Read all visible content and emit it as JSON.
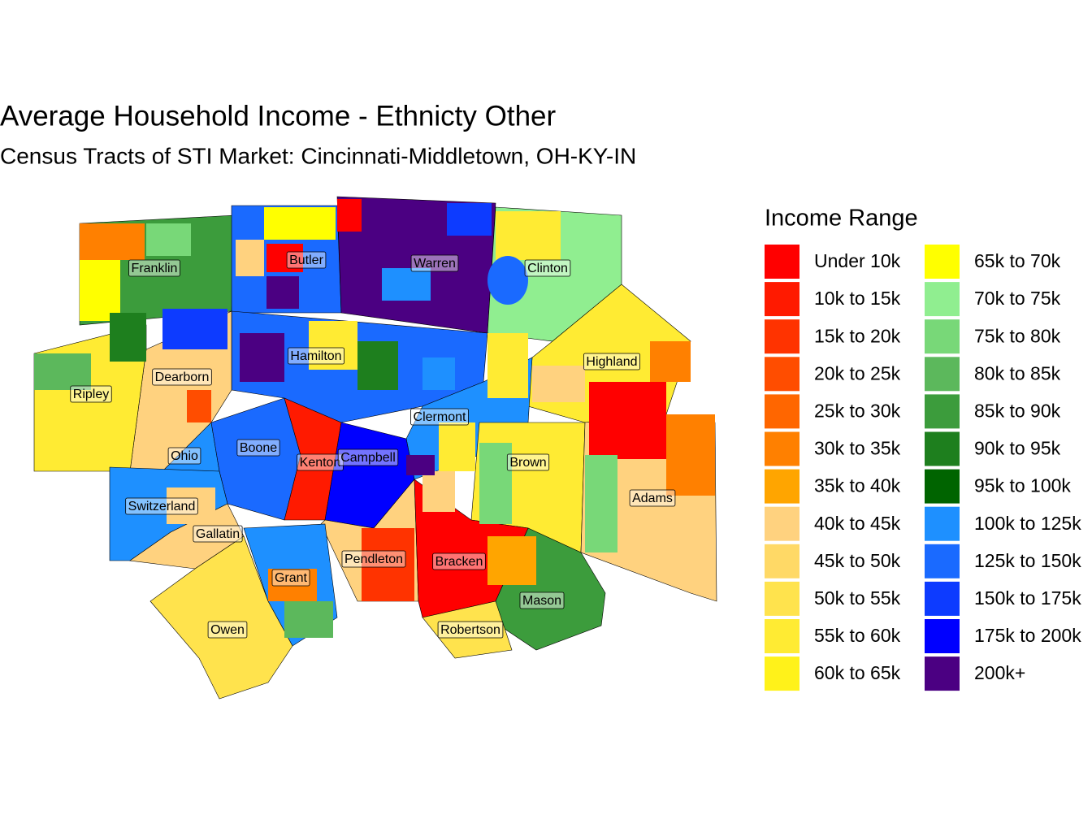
{
  "title": "Average Household Income - Ethnicty Other",
  "subtitle": "Census Tracts of STI Market: Cincinnati-Middletown, OH-KY-IN",
  "legend": {
    "title": "Income Range",
    "items": [
      {
        "label": "Under 10k",
        "color": "#FF0000"
      },
      {
        "label": "10k to 15k",
        "color": "#FF1A00"
      },
      {
        "label": "15k to 20k",
        "color": "#FF3300"
      },
      {
        "label": "20k to 25k",
        "color": "#FF4D00"
      },
      {
        "label": "25k to 30k",
        "color": "#FF6600"
      },
      {
        "label": "30k to 35k",
        "color": "#FF8000"
      },
      {
        "label": "35k to 40k",
        "color": "#FFA500"
      },
      {
        "label": "40k to 45k",
        "color": "#FFD27F"
      },
      {
        "label": "45k to 50k",
        "color": "#FFD966"
      },
      {
        "label": "50k to 55k",
        "color": "#FFE34D"
      },
      {
        "label": "55k to 60k",
        "color": "#FFEB33"
      },
      {
        "label": "60k to 65k",
        "color": "#FFF21A"
      },
      {
        "label": "65k to 70k",
        "color": "#FFFF00"
      },
      {
        "label": "70k to 75k",
        "color": "#90EE90"
      },
      {
        "label": "75k to 80k",
        "color": "#78D878"
      },
      {
        "label": "80k to 85k",
        "color": "#5CB85C"
      },
      {
        "label": "85k to 90k",
        "color": "#3C9C3C"
      },
      {
        "label": "90k to 95k",
        "color": "#1E7F1E"
      },
      {
        "label": "95k to 100k",
        "color": "#006400"
      },
      {
        "label": "100k to 125k",
        "color": "#1E90FF"
      },
      {
        "label": "125k to 150k",
        "color": "#1A6AFF"
      },
      {
        "label": "150k to 175k",
        "color": "#0D3BFF"
      },
      {
        "label": "175k to 200k",
        "color": "#0000FF"
      },
      {
        "label": "200k+",
        "color": "#4B0082"
      }
    ]
  },
  "counties": [
    "Franklin",
    "Butler",
    "Warren",
    "Clinton",
    "Hamilton",
    "Highland",
    "Dearborn",
    "Ripley",
    "Clermont",
    "Ohio",
    "Boone",
    "Kenton",
    "Campbell",
    "Brown",
    "Switzerland",
    "Adams",
    "Gallatin",
    "Pendleton",
    "Bracken",
    "Grant",
    "Mason",
    "Owen",
    "Robertson"
  ]
}
